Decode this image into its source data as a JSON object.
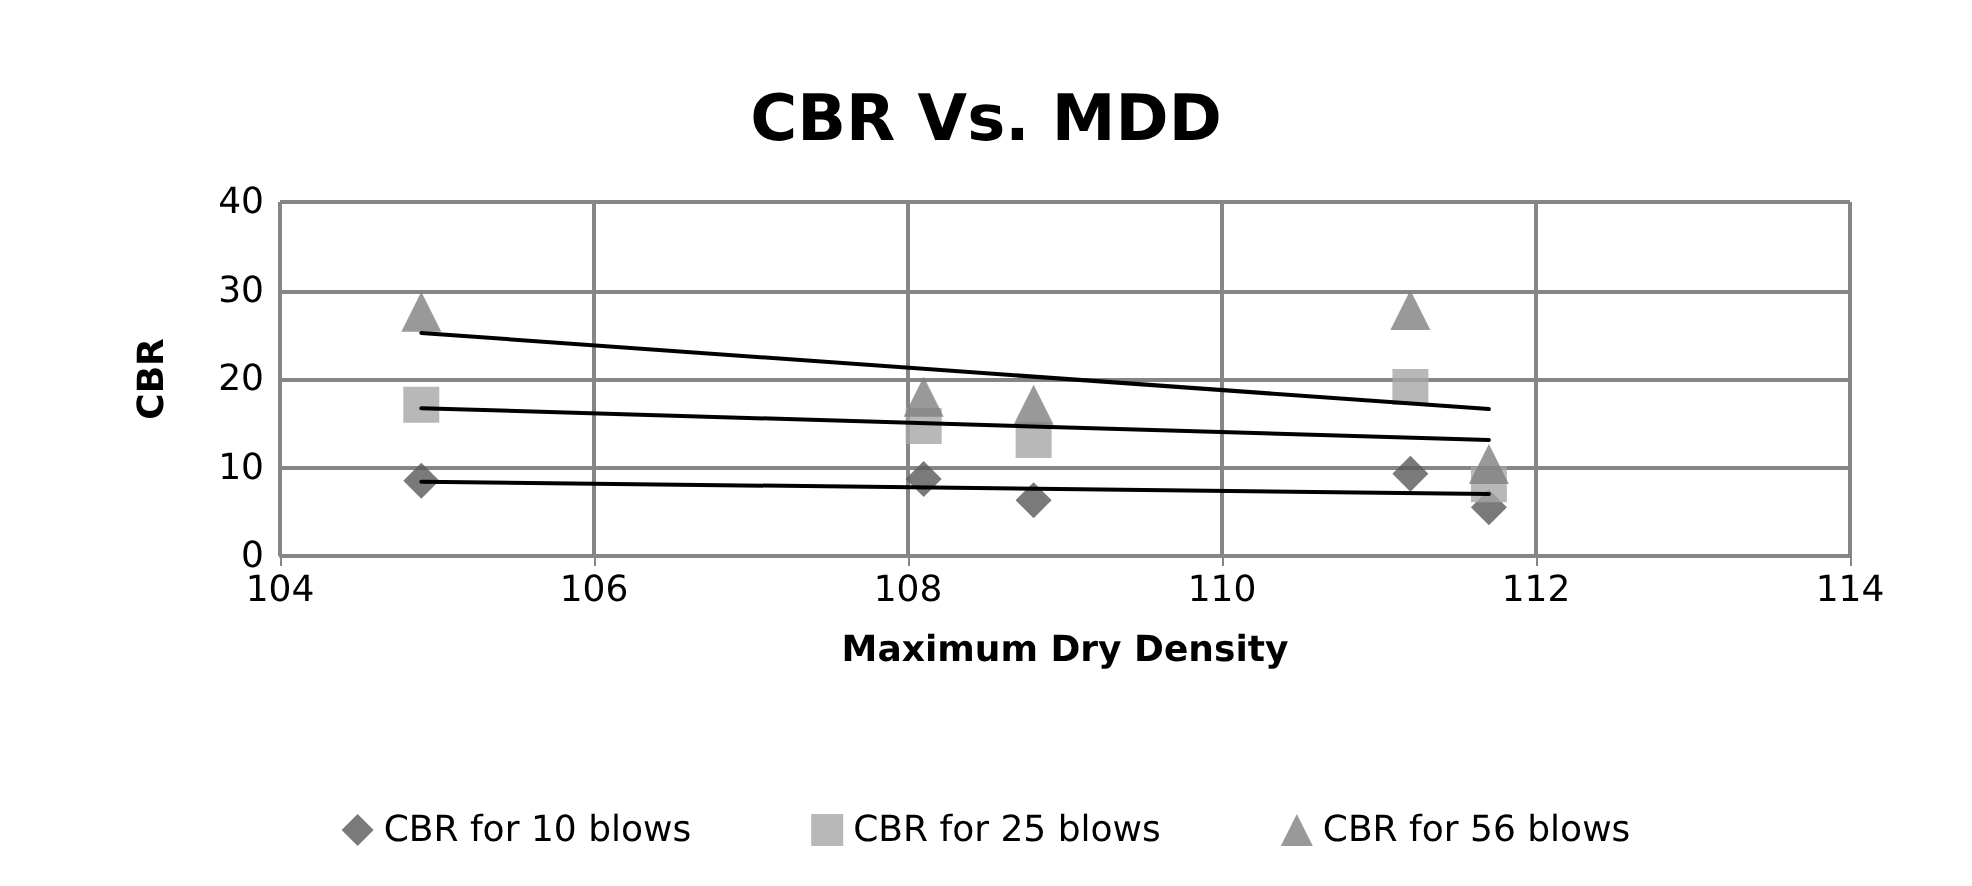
{
  "chart_data": {
    "type": "scatter",
    "title": "CBR Vs. MDD",
    "xlabel": "Maximum Dry Density",
    "ylabel": "CBR",
    "xlim": [
      104,
      114
    ],
    "xticks": [
      104,
      106,
      108,
      110,
      112,
      114
    ],
    "ylim": [
      0,
      40
    ],
    "yticks": [
      0,
      10,
      20,
      30,
      40
    ],
    "grid": true,
    "legend": "bottom",
    "series": [
      {
        "name": "CBR for 10 blows",
        "color": "#595959",
        "marker": "diamond",
        "x": [
          104.9,
          108.1,
          108.8,
          111.2,
          111.7
        ],
        "values": [
          8.5,
          8.7,
          6.3,
          9.3,
          5.5
        ]
      },
      {
        "name": "CBR for 25 blows",
        "color": "#a6a6a6",
        "marker": "square",
        "x": [
          104.9,
          108.1,
          108.8,
          111.2,
          111.7
        ],
        "values": [
          17.1,
          14.7,
          13.1,
          19.1,
          8.1
        ]
      },
      {
        "name": "CBR for 56 blows",
        "color": "#808080",
        "marker": "triangle",
        "x": [
          104.9,
          108.1,
          108.8,
          111.2,
          111.7
        ],
        "values": [
          27.6,
          18.0,
          17.1,
          27.8,
          10.4
        ]
      },
      {
        "type": "line",
        "color": "#000000",
        "marker": "none",
        "x": [
          104.9,
          111.7
        ],
        "values": [
          8.4,
          7.0
        ]
      },
      {
        "type": "line",
        "color": "#000000",
        "marker": "none",
        "x": [
          104.9,
          111.7
        ],
        "values": [
          16.7,
          13.1
        ]
      },
      {
        "type": "line",
        "color": "#000000",
        "marker": "none",
        "x": [
          104.9,
          111.7
        ],
        "values": [
          25.2,
          16.6
        ]
      }
    ]
  }
}
